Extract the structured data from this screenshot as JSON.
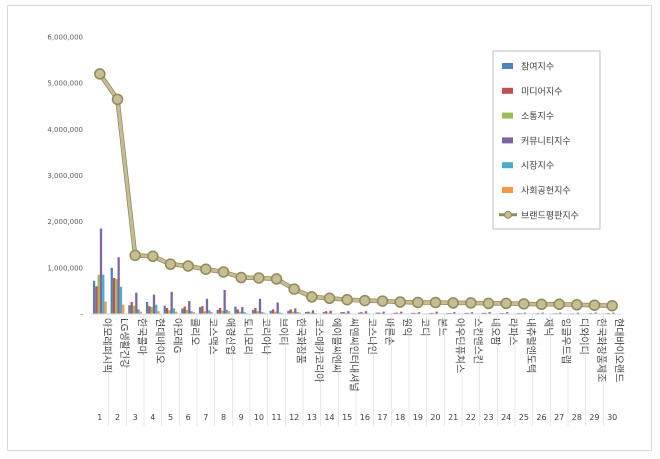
{
  "chart_data": {
    "type": "bar",
    "title": "",
    "xlabel": "",
    "ylabel": "",
    "ylim": [
      0,
      6000000
    ],
    "yticks": [
      0,
      1000000,
      2000000,
      3000000,
      4000000,
      5000000,
      6000000
    ],
    "ytick_labels": [
      "-",
      "1,000,000",
      "2,000,000",
      "3,000,000",
      "4,000,000",
      "5,000,000",
      "6,000,000"
    ],
    "grid": false,
    "legend_position": "top-right",
    "indices": [
      "1",
      "2",
      "3",
      "4",
      "5",
      "6",
      "7",
      "8",
      "9",
      "10",
      "11",
      "12",
      "13",
      "14",
      "15",
      "16",
      "17",
      "18",
      "19",
      "20",
      "21",
      "22",
      "23",
      "24",
      "25",
      "26",
      "27",
      "28",
      "29",
      "30"
    ],
    "categories": [
      "아모레퍼시픽",
      "LG생활건강",
      "한국콜마",
      "현대바이오",
      "아모레G",
      "클리오",
      "코스맥스",
      "애경산업",
      "토니모리",
      "코리아나",
      "브이티",
      "한국화장품",
      "코스메카코리아",
      "에이블씨엔씨",
      "씨앤씨인터내셔널",
      "코스나인",
      "바른손",
      "원익",
      "코디",
      "본느",
      "아우딘퓨쳐스",
      "스킨앤스킨",
      "네오팜",
      "라파스",
      "내츄럴엔도텍",
      "제닉",
      "잉글우드랩",
      "디와이디",
      "한국화장품제조",
      "현대바이오랜드"
    ],
    "series": [
      {
        "name": "참여지수",
        "color": "#4f81bd",
        "type": "bar",
        "values": [
          720000,
          1000000,
          190000,
          260000,
          180000,
          120000,
          150000,
          90000,
          160000,
          90000,
          70000,
          70000,
          45000,
          40000,
          40000,
          30000,
          30000,
          25000,
          25000,
          20000,
          20000,
          20000,
          25000,
          20000,
          20000,
          15000,
          15000,
          15000,
          15000,
          15000
        ]
      },
      {
        "name": "미디어지수",
        "color": "#c0504d",
        "type": "bar",
        "values": [
          600000,
          780000,
          260000,
          170000,
          130000,
          160000,
          170000,
          130000,
          100000,
          130000,
          100000,
          100000,
          50000,
          60000,
          40000,
          40000,
          30000,
          30000,
          25000,
          25000,
          20000,
          25000,
          25000,
          20000,
          20000,
          20000,
          20000,
          15000,
          20000,
          20000
        ]
      },
      {
        "name": "소통지수",
        "color": "#9bbb59",
        "type": "bar",
        "values": [
          850000,
          760000,
          180000,
          150000,
          80000,
          90000,
          60000,
          70000,
          50000,
          60000,
          50000,
          50000,
          30000,
          30000,
          25000,
          20000,
          20000,
          20000,
          20000,
          15000,
          15000,
          15000,
          15000,
          15000,
          15000,
          10000,
          15000,
          10000,
          10000,
          10000
        ]
      },
      {
        "name": "커뮤니티지수",
        "color": "#8064a2",
        "type": "bar",
        "values": [
          1850000,
          1230000,
          460000,
          420000,
          480000,
          280000,
          330000,
          520000,
          150000,
          330000,
          250000,
          120000,
          80000,
          70000,
          60000,
          60000,
          50000,
          50000,
          40000,
          50000,
          40000,
          40000,
          40000,
          40000,
          30000,
          30000,
          30000,
          30000,
          30000,
          30000
        ]
      },
      {
        "name": "시장지수",
        "color": "#4bacc6",
        "type": "bar",
        "values": [
          850000,
          590000,
          100000,
          200000,
          120000,
          60000,
          80000,
          90000,
          40000,
          40000,
          30000,
          40000,
          20000,
          15000,
          15000,
          15000,
          10000,
          10000,
          10000,
          10000,
          10000,
          10000,
          10000,
          10000,
          10000,
          10000,
          10000,
          10000,
          10000,
          10000
        ]
      },
      {
        "name": "사회공헌지수",
        "color": "#f79646",
        "type": "bar",
        "values": [
          270000,
          200000,
          50000,
          60000,
          50000,
          40000,
          40000,
          60000,
          20000,
          30000,
          20000,
          30000,
          15000,
          15000,
          10000,
          10000,
          10000,
          10000,
          10000,
          10000,
          10000,
          10000,
          10000,
          10000,
          10000,
          10000,
          10000,
          10000,
          10000,
          10000
        ]
      },
      {
        "name": "브랜드평판지수",
        "color": "#c4bd97",
        "type": "line",
        "values": [
          5200000,
          4650000,
          1270000,
          1250000,
          1080000,
          1040000,
          970000,
          910000,
          790000,
          780000,
          760000,
          540000,
          370000,
          340000,
          310000,
          290000,
          280000,
          260000,
          250000,
          250000,
          240000,
          240000,
          230000,
          230000,
          220000,
          210000,
          210000,
          200000,
          190000,
          180000
        ]
      }
    ]
  }
}
